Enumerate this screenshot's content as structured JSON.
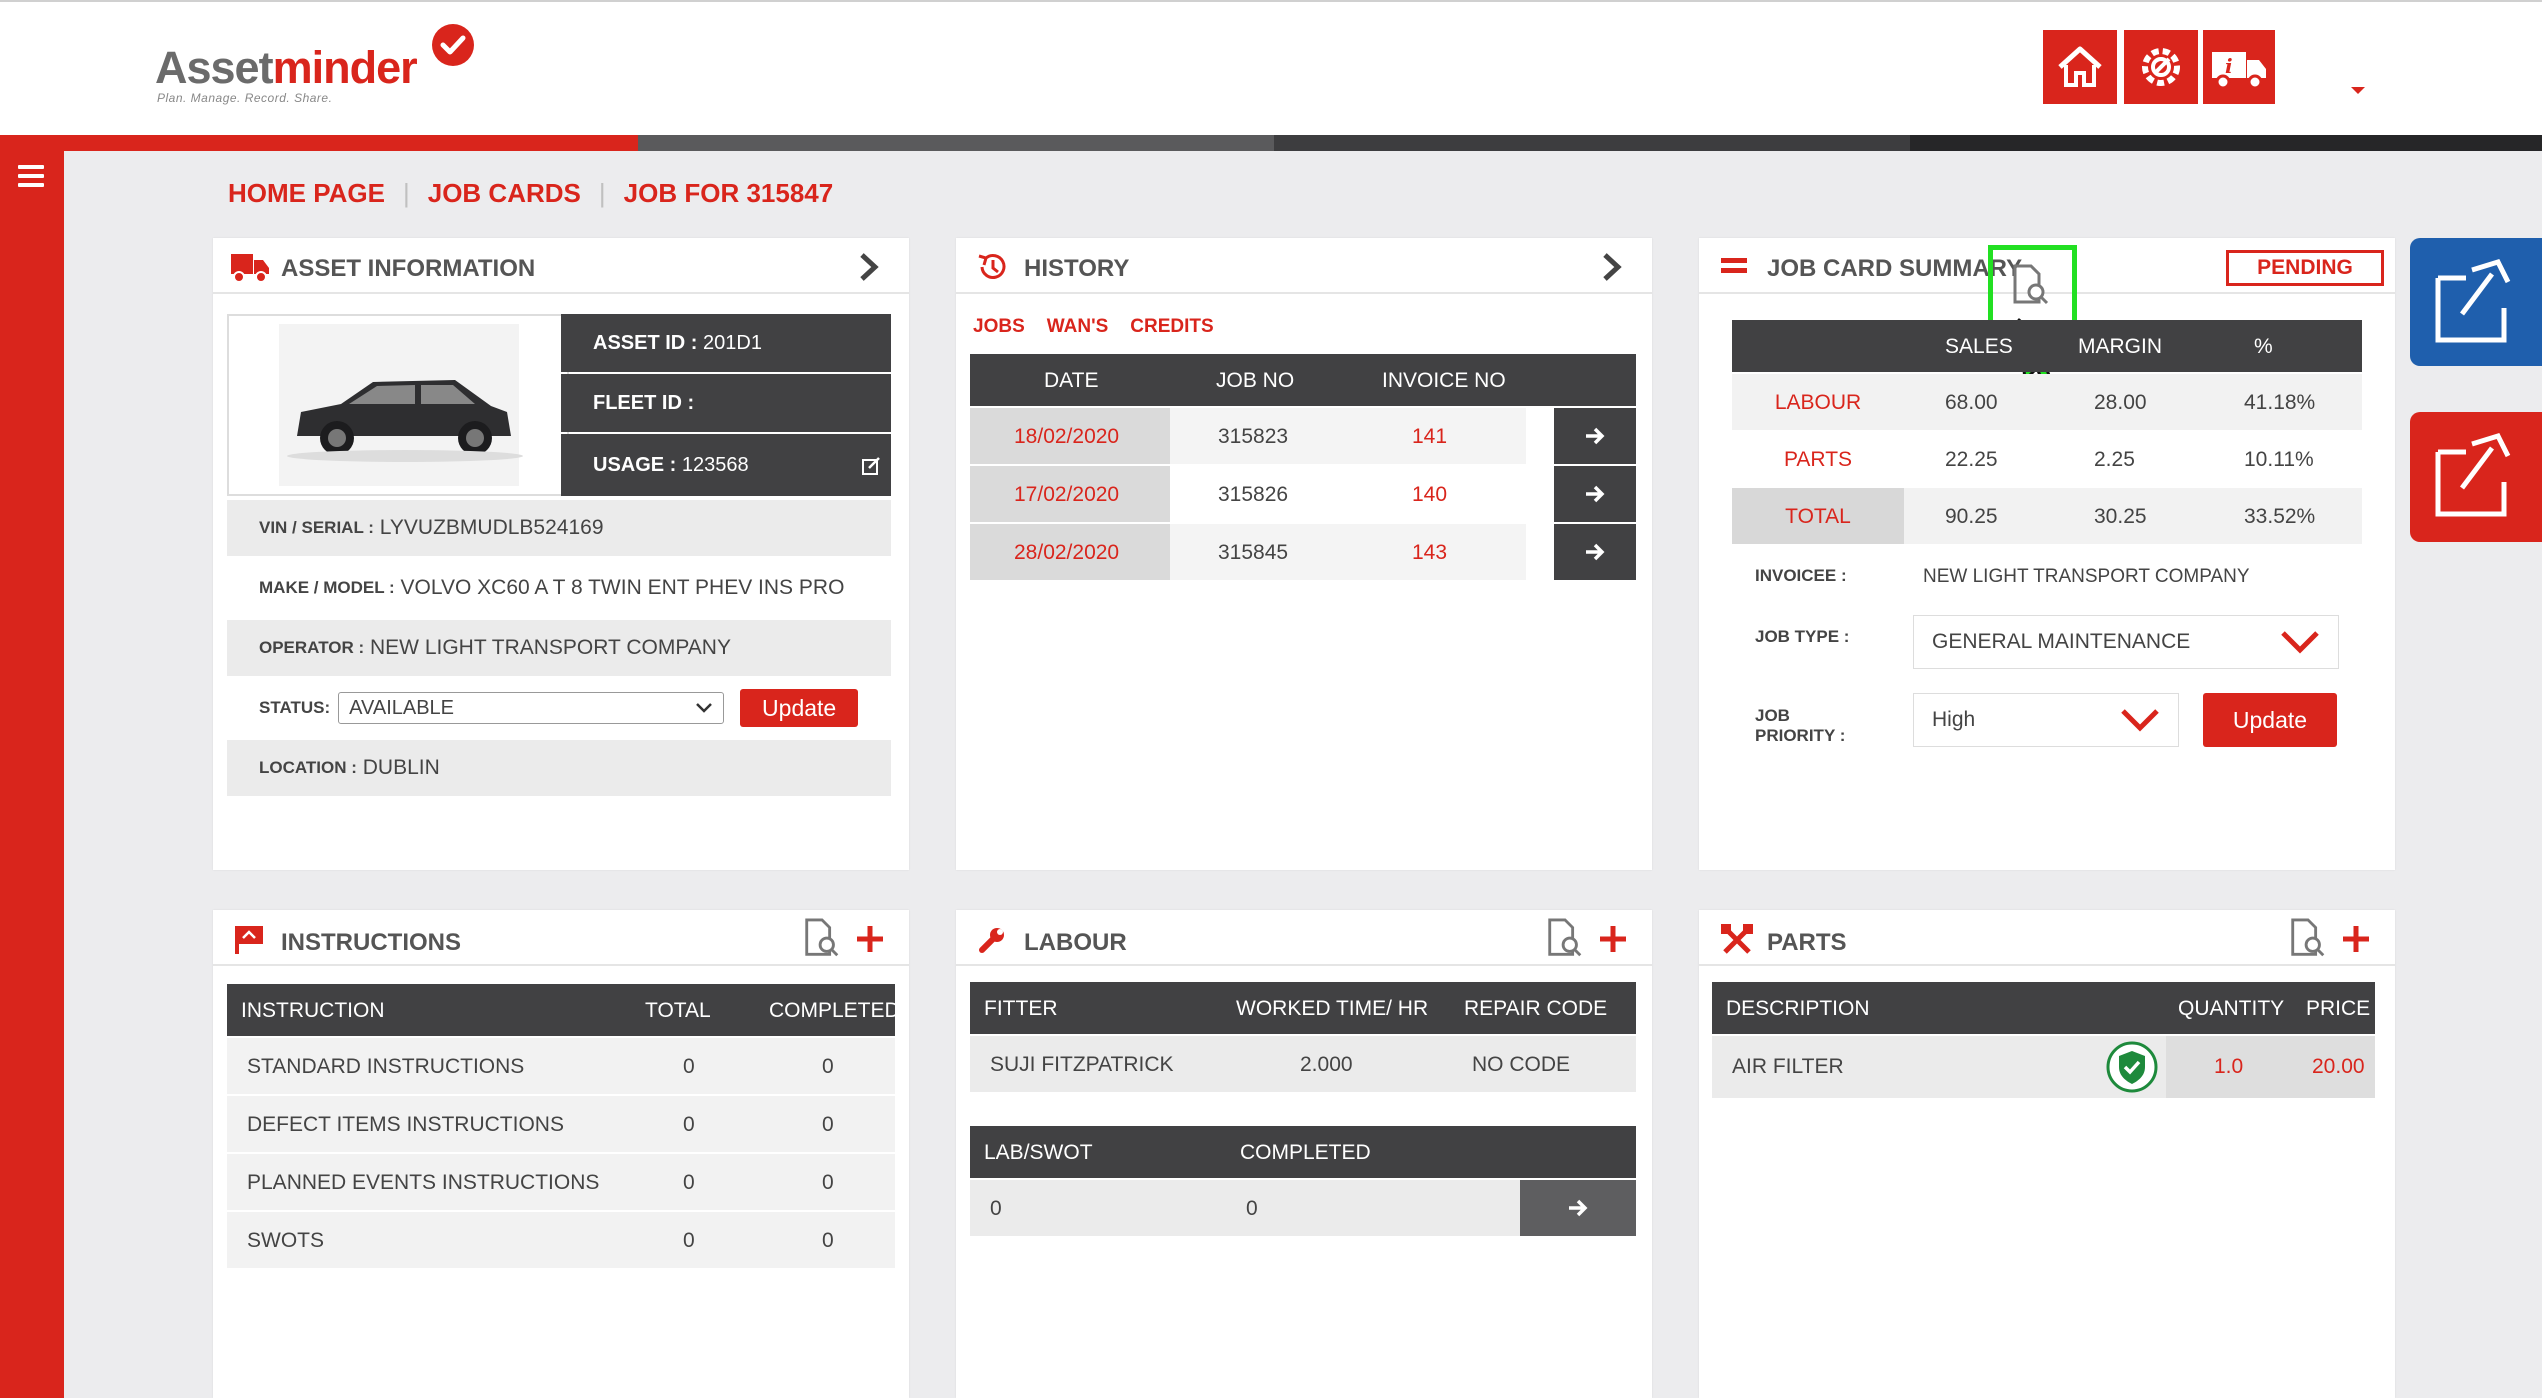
{
  "app": {
    "logo_main": "Asset",
    "logo_accent": "minder",
    "logo_tagline": "Plan. Manage. Record. Share."
  },
  "colors": {
    "brand_red": "#d9251c",
    "dark": "#414143",
    "blue": "#1f5fad",
    "highlight_green": "#22e022"
  },
  "topbar": {
    "icons": [
      "home-icon",
      "service-gear-icon",
      "truck-info-icon",
      "caret-down-icon"
    ]
  },
  "breadcrumb": {
    "items": [
      "HOME PAGE",
      "JOB CARDS",
      "JOB FOR 315847"
    ]
  },
  "asset": {
    "title": "ASSET INFORMATION",
    "asset_id_label": "ASSET ID :",
    "asset_id": "201D1",
    "fleet_id_label": "FLEET ID :",
    "fleet_id": "",
    "usage_label": "USAGE :",
    "usage": "123568",
    "vin_label": "VIN / SERIAL :",
    "vin": "LYVUZBMUDLB524169",
    "make_label": "MAKE / MODEL :",
    "make": "VOLVO XC60 A T 8 TWIN ENT PHEV INS PRO",
    "operator_label": "OPERATOR :",
    "operator": "NEW LIGHT TRANSPORT COMPANY",
    "status_label": "STATUS:",
    "status": "AVAILABLE",
    "update_label": "Update",
    "location_label": "LOCATION :",
    "location": "DUBLIN"
  },
  "history": {
    "title": "HISTORY",
    "tabs": [
      "JOBS",
      "WAN'S",
      "CREDITS"
    ],
    "columns": [
      "DATE",
      "JOB NO",
      "INVOICE NO"
    ],
    "rows": [
      {
        "date": "18/02/2020",
        "job": "315823",
        "invoice": "141"
      },
      {
        "date": "17/02/2020",
        "job": "315826",
        "invoice": "140"
      },
      {
        "date": "28/02/2020",
        "job": "315845",
        "invoice": "143"
      }
    ]
  },
  "summary": {
    "title": "JOB CARD SUMMARY",
    "status_badge": "PENDING",
    "columns": [
      "SALES",
      "MARGIN",
      "%"
    ],
    "rows": [
      {
        "label": "LABOUR",
        "sales": "68.00",
        "margin": "28.00",
        "pct": "41.18%"
      },
      {
        "label": "PARTS",
        "sales": "22.25",
        "margin": "2.25",
        "pct": "10.11%"
      },
      {
        "label": "TOTAL",
        "sales": "90.25",
        "margin": "30.25",
        "pct": "33.52%"
      }
    ],
    "invoicee_label": "INVOICEE :",
    "invoicee": "NEW LIGHT TRANSPORT COMPANY",
    "job_type_label": "JOB TYPE :",
    "job_type": "GENERAL MAINTENANCE",
    "priority_label_1": "JOB",
    "priority_label_2": "PRIORITY :",
    "priority": "High",
    "update_label": "Update"
  },
  "instructions": {
    "title": "INSTRUCTIONS",
    "columns": [
      "INSTRUCTION",
      "TOTAL",
      "COMPLETED"
    ],
    "rows": [
      {
        "name": "STANDARD INSTRUCTIONS",
        "total": "0",
        "completed": "0"
      },
      {
        "name": "DEFECT ITEMS INSTRUCTIONS",
        "total": "0",
        "completed": "0"
      },
      {
        "name": "PLANNED EVENTS INSTRUCTIONS",
        "total": "0",
        "completed": "0"
      },
      {
        "name": "SWOTS",
        "total": "0",
        "completed": "0"
      }
    ]
  },
  "labour": {
    "title": "LABOUR",
    "columns": [
      "FITTER",
      "WORKED TIME/ HR",
      "REPAIR CODE"
    ],
    "rows": [
      {
        "fitter": "SUJI FITZPATRICK",
        "time": "2.000",
        "code": "NO CODE"
      }
    ],
    "columns2": [
      "LAB/SWOT",
      "COMPLETED"
    ],
    "rows2": [
      {
        "lab": "0",
        "completed": "0"
      }
    ]
  },
  "parts": {
    "title": "PARTS",
    "columns": [
      "DESCRIPTION",
      "QUANTITY",
      "PRICE"
    ],
    "rows": [
      {
        "desc": "AIR FILTER",
        "qty": "1.0",
        "price": "20.00"
      }
    ]
  }
}
